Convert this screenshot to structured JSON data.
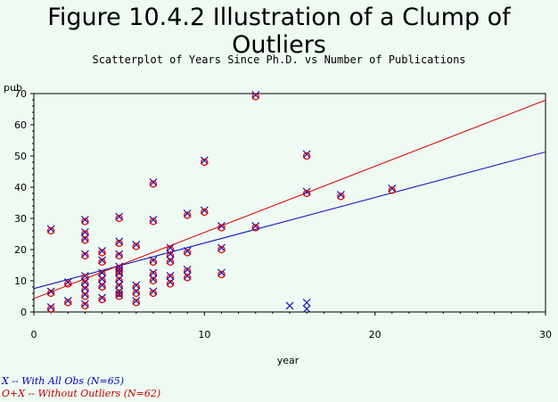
{
  "title": "Figure 10.4.2 Illustration of a Clump of Outliers",
  "subtitle": "Scatterplot of Years Since Ph.D. vs Number of Publications",
  "legend": {
    "all_obs": "X -- With All Obs (N=65)",
    "without_outliers": "O+X -- Without Outliers (N=62)"
  },
  "colors": {
    "all_obs": "#0000c0",
    "without_outliers": "#e00000",
    "background": "#eefaf2"
  },
  "chart_data": {
    "type": "scatter",
    "xlabel": "year",
    "ylabel": "pub",
    "xlim": [
      0,
      30
    ],
    "ylim": [
      0,
      70
    ],
    "xticks": [
      0,
      10,
      20,
      30
    ],
    "yticks": [
      0,
      10,
      20,
      30,
      40,
      50,
      60,
      70
    ],
    "grid": false,
    "points": [
      [
        1,
        26
      ],
      [
        1,
        6
      ],
      [
        1,
        1
      ],
      [
        2,
        9
      ],
      [
        2,
        3
      ],
      [
        3,
        29
      ],
      [
        3,
        25
      ],
      [
        3,
        23
      ],
      [
        3,
        18
      ],
      [
        3,
        11
      ],
      [
        3,
        9
      ],
      [
        3,
        7
      ],
      [
        3,
        5
      ],
      [
        3,
        2
      ],
      [
        4,
        19
      ],
      [
        4,
        16
      ],
      [
        4,
        12
      ],
      [
        4,
        10
      ],
      [
        4,
        8
      ],
      [
        4,
        4
      ],
      [
        5,
        30
      ],
      [
        5,
        22
      ],
      [
        5,
        18
      ],
      [
        5,
        14
      ],
      [
        5,
        13
      ],
      [
        5,
        12
      ],
      [
        5,
        10
      ],
      [
        5,
        8
      ],
      [
        5,
        6
      ],
      [
        5,
        5
      ],
      [
        6,
        21
      ],
      [
        6,
        8
      ],
      [
        6,
        6
      ],
      [
        6,
        3
      ],
      [
        7,
        41
      ],
      [
        7,
        29
      ],
      [
        7,
        16
      ],
      [
        7,
        12
      ],
      [
        7,
        10
      ],
      [
        7,
        6
      ],
      [
        8,
        20
      ],
      [
        8,
        18
      ],
      [
        8,
        16
      ],
      [
        8,
        11
      ],
      [
        8,
        9
      ],
      [
        9,
        31
      ],
      [
        9,
        19
      ],
      [
        9,
        13
      ],
      [
        9,
        11
      ],
      [
        10,
        48
      ],
      [
        10,
        32
      ],
      [
        11,
        27
      ],
      [
        11,
        20
      ],
      [
        11,
        12
      ],
      [
        13,
        69
      ],
      [
        13,
        27
      ],
      [
        16,
        50
      ],
      [
        16,
        38
      ],
      [
        18,
        37
      ],
      [
        21,
        39
      ]
    ],
    "outliers": [
      [
        15,
        2
      ],
      [
        16,
        3
      ],
      [
        16,
        1
      ]
    ],
    "series": [
      {
        "name": "X -- With All Obs (N=65)",
        "fit_line": {
          "intercept": 7.5,
          "slope": 1.46
        }
      },
      {
        "name": "O+X -- Without Outliers (N=62)",
        "fit_line": {
          "intercept": 4.3,
          "slope": 2.12
        }
      }
    ]
  }
}
